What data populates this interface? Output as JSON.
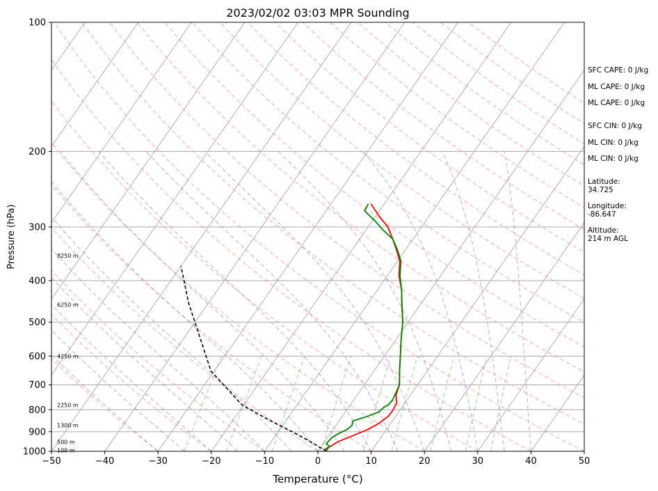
{
  "chart_data": {
    "type": "line",
    "title": "2023/02/02 03:03 MPR Sounding",
    "xlabel": "Temperature (°C)",
    "ylabel": "Pressure (hPa)",
    "xlim": [
      -50,
      50
    ],
    "ylim": [
      1000,
      100
    ],
    "y_scale": "log",
    "grid": true,
    "x_ticks": [
      "−50",
      "−40",
      "−30",
      "−20",
      "−10",
      "0",
      "10",
      "20",
      "30",
      "40",
      "50"
    ],
    "y_ticks": [
      "100",
      "200",
      "300",
      "400",
      "500",
      "600",
      "700",
      "800",
      "900",
      "1000"
    ],
    "height_labels": [
      "8250 m",
      "6250 m",
      "4250 m",
      "2250 m",
      "1300 m",
      "500 m",
      "100 m"
    ],
    "series": [
      {
        "color": "#ff0000",
        "x": [
          1.5,
          1.5,
          2.5,
          4.5,
          6.5,
          7.8,
          8.6,
          8.7,
          8.4,
          7.3,
          6.6,
          4.8,
          3.0,
          1.0,
          -1.0,
          -3.2,
          -5.5,
          -7.8,
          -9.6,
          -11.6,
          -13.8,
          -16.3,
          -19.0,
          -22.5
        ],
        "y": [
          1000,
          980,
          950,
          920,
          890,
          860,
          830,
          800,
          770,
          740,
          700,
          650,
          600,
          550,
          500,
          460,
          420,
          390,
          360,
          340,
          320,
          300,
          285,
          265
        ]
      },
      {
        "color": "#008000",
        "x": [
          1.6,
          1.0,
          1.6,
          0.6,
          0.8,
          1.5,
          2.6,
          3.0,
          2.6,
          4.6,
          6.3,
          6.6,
          7.1,
          7.3,
          6.6,
          4.8,
          3.0,
          1.0,
          -1.0,
          -3.2,
          -5.5,
          -7.6,
          -9.4,
          -11.4,
          -13.8,
          -16.8,
          -19.6,
          -22.8,
          -23.0
        ],
        "y": [
          1000,
          990,
          975,
          960,
          930,
          910,
          890,
          870,
          850,
          830,
          810,
          790,
          780,
          760,
          700,
          650,
          600,
          550,
          500,
          460,
          420,
          390,
          360,
          340,
          320,
          305,
          290,
          275,
          265
        ]
      },
      {
        "color": "#000000",
        "x": [
          1.6,
          -2.6,
          -7.4,
          -12.8,
          -20.3,
          -30.6,
          -43.8,
          -50.0
        ],
        "y": [
          1000,
          950,
          900,
          850,
          780,
          650,
          450,
          370
        ]
      }
    ],
    "info_lines": [
      "SFC CAPE: 0 J/kg",
      "ML CAPE: 0 J/kg",
      "ML CAPE: 0 J/kg",
      "SFC CIN: 0 J/kg",
      "ML CIN: 0 J/kg",
      "ML CIN: 0 J/kg",
      "Latitude:",
      "34.725",
      "Longitude:",
      "-86.647",
      "Altitude:",
      "214 m AGL"
    ]
  }
}
